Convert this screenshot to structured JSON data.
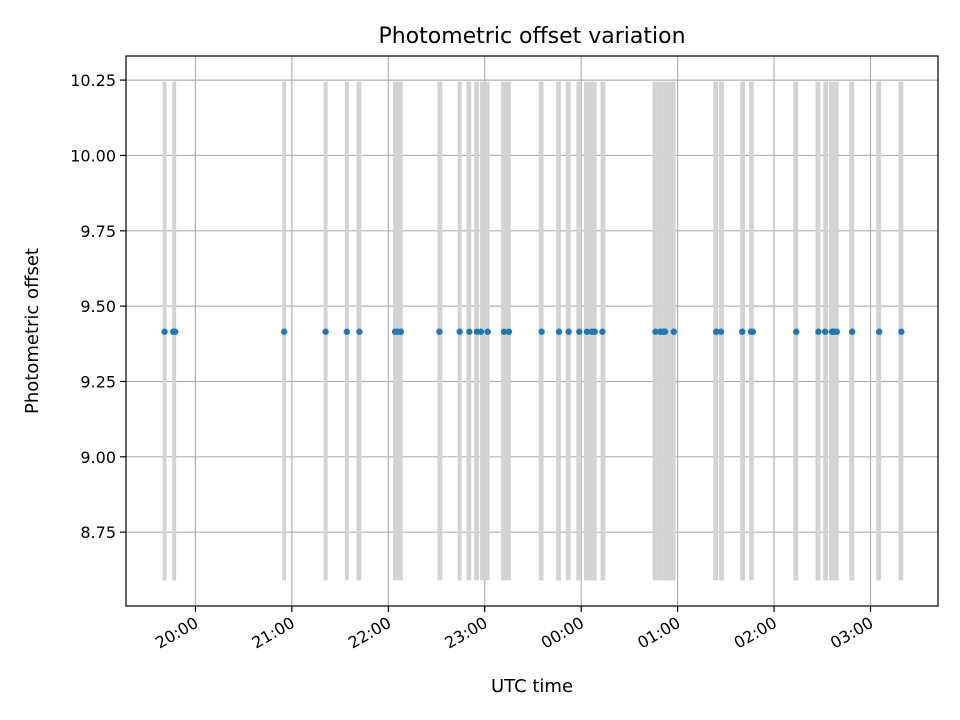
{
  "chart_data": {
    "type": "scatter",
    "title": "Photometric offset variation",
    "xlabel": "UTC time",
    "ylabel": "Photometric offset",
    "x_axis_type": "time",
    "x_unit": "hours UTC",
    "xlim": [
      19.28,
      27.7
    ],
    "ylim": [
      8.505,
      10.33
    ],
    "grid": true,
    "xticks": [
      {
        "value": 20,
        "label": "20:00"
      },
      {
        "value": 21,
        "label": "21:00"
      },
      {
        "value": 22,
        "label": "22:00"
      },
      {
        "value": 23,
        "label": "23:00"
      },
      {
        "value": 24,
        "label": "00:00"
      },
      {
        "value": 25,
        "label": "01:00"
      },
      {
        "value": 26,
        "label": "02:00"
      },
      {
        "value": 27,
        "label": "03:00"
      }
    ],
    "yticks": [
      {
        "value": 8.75,
        "label": "8.75"
      },
      {
        "value": 9.0,
        "label": "9.00"
      },
      {
        "value": 9.25,
        "label": "9.25"
      },
      {
        "value": 9.5,
        "label": "9.50"
      },
      {
        "value": 9.75,
        "label": "9.75"
      },
      {
        "value": 10.0,
        "label": "10.00"
      },
      {
        "value": 10.25,
        "label": "10.25"
      }
    ],
    "colors": {
      "points": "#1f77b4",
      "bands": "#d3d3d3",
      "grid": "#b0b0b0"
    },
    "bands": {
      "y_range": [
        8.59,
        10.245
      ],
      "x_ranges": [
        [
          19.66,
          19.7
        ],
        [
          19.76,
          19.8
        ],
        [
          20.9,
          20.94
        ],
        [
          21.33,
          21.37
        ],
        [
          21.55,
          21.59
        ],
        [
          21.67,
          21.72
        ],
        [
          22.05,
          22.1
        ],
        [
          22.1,
          22.15
        ],
        [
          22.51,
          22.56
        ],
        [
          22.72,
          22.76
        ],
        [
          22.81,
          22.86
        ],
        [
          22.89,
          22.94
        ],
        [
          22.95,
          23.0
        ],
        [
          23.0,
          23.05
        ],
        [
          23.17,
          23.22
        ],
        [
          23.22,
          23.27
        ],
        [
          23.56,
          23.61
        ],
        [
          23.74,
          23.79
        ],
        [
          23.84,
          23.89
        ],
        [
          23.95,
          24.0
        ],
        [
          24.03,
          24.08
        ],
        [
          24.08,
          24.13
        ],
        [
          24.11,
          24.16
        ],
        [
          24.2,
          24.25
        ],
        [
          24.74,
          24.79
        ],
        [
          24.79,
          24.84
        ],
        [
          24.84,
          24.89
        ],
        [
          24.88,
          24.93
        ],
        [
          24.93,
          24.98
        ],
        [
          25.37,
          25.42
        ],
        [
          25.43,
          25.48
        ],
        [
          25.65,
          25.7
        ],
        [
          25.74,
          25.79
        ],
        [
          26.2,
          26.25
        ],
        [
          26.43,
          26.48
        ],
        [
          26.51,
          26.56
        ],
        [
          26.57,
          26.62
        ],
        [
          26.62,
          26.67
        ],
        [
          26.78,
          26.83
        ],
        [
          27.06,
          27.11
        ],
        [
          27.29,
          27.34
        ]
      ]
    },
    "series": [
      {
        "x": [
          19.68,
          19.77,
          19.79,
          20.92,
          21.35,
          21.57,
          21.7,
          22.07,
          22.1,
          22.13,
          22.53,
          22.74,
          22.84,
          22.92,
          22.96,
          23.03,
          23.2,
          23.25,
          23.59,
          23.77,
          23.87,
          23.98,
          24.06,
          24.11,
          24.14,
          24.22,
          24.77,
          24.82,
          24.85,
          24.87,
          24.96,
          25.4,
          25.45,
          25.67,
          25.76,
          25.78,
          26.23,
          26.46,
          26.53,
          26.6,
          26.62,
          26.65,
          26.81,
          27.09,
          27.32
        ],
        "y": [
          9.415,
          9.415,
          9.415,
          9.415,
          9.415,
          9.415,
          9.415,
          9.415,
          9.415,
          9.415,
          9.415,
          9.415,
          9.415,
          9.415,
          9.415,
          9.415,
          9.415,
          9.415,
          9.415,
          9.415,
          9.415,
          9.415,
          9.415,
          9.415,
          9.415,
          9.415,
          9.415,
          9.415,
          9.415,
          9.415,
          9.415,
          9.415,
          9.415,
          9.415,
          9.415,
          9.415,
          9.415,
          9.415,
          9.415,
          9.415,
          9.415,
          9.415,
          9.415,
          9.415,
          9.415
        ]
      }
    ]
  }
}
